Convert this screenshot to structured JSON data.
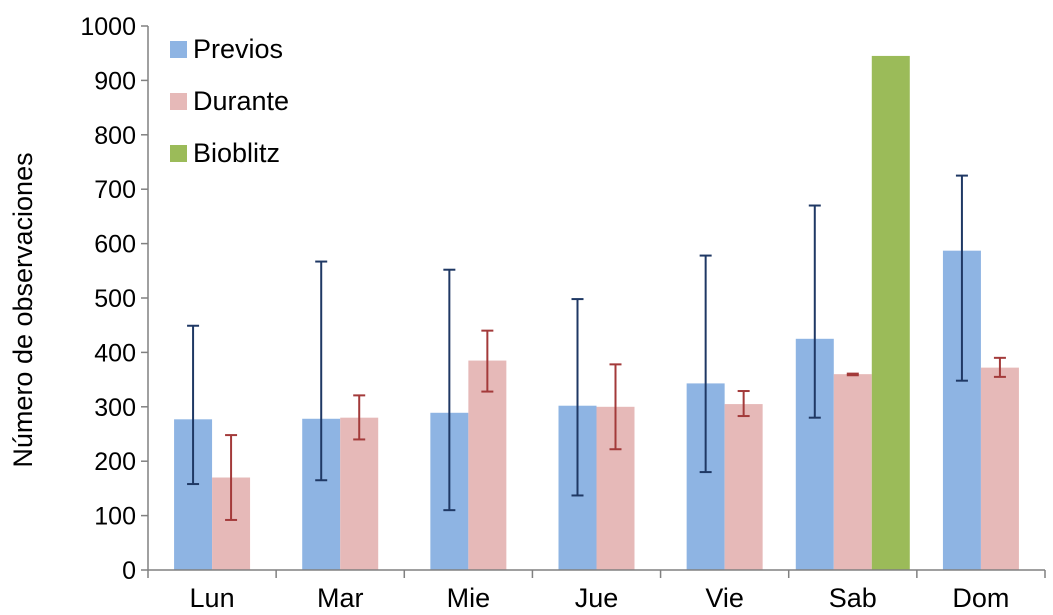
{
  "chart_data": {
    "type": "bar",
    "title": "",
    "xlabel": "",
    "ylabel": "Número de observaciones",
    "ylim": [
      0,
      1000
    ],
    "yticks": [
      0,
      100,
      200,
      300,
      400,
      500,
      600,
      700,
      800,
      900,
      1000
    ],
    "categories": [
      "Lun",
      "Mar",
      "Mie",
      "Jue",
      "Vie",
      "Sab",
      "Dom"
    ],
    "legend_position": "top-left",
    "grid": false,
    "series": [
      {
        "name": "Previos",
        "color": "#8eb4e3",
        "error_color": "#1f3864",
        "values": [
          277,
          278,
          289,
          302,
          343,
          425,
          587
        ],
        "error_low": [
          158,
          165,
          110,
          137,
          180,
          280,
          348
        ],
        "error_high": [
          449,
          567,
          552,
          498,
          578,
          670,
          725
        ]
      },
      {
        "name": "Durante",
        "color": "#e6b9b8",
        "error_color": "#a33a3a",
        "values": [
          170,
          280,
          385,
          300,
          305,
          360,
          372
        ],
        "error_low": [
          92,
          240,
          328,
          222,
          283,
          358,
          355
        ],
        "error_high": [
          248,
          321,
          440,
          378,
          329,
          361,
          390
        ]
      },
      {
        "name": "Bioblitz",
        "color": "#9bbb59",
        "values": [
          null,
          null,
          null,
          null,
          null,
          945,
          null
        ]
      }
    ]
  }
}
